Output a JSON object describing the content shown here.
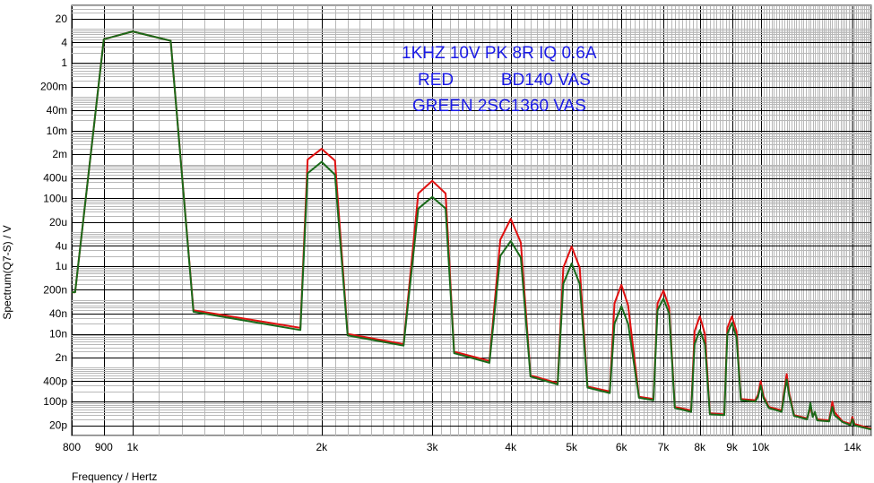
{
  "chart_data": {
    "type": "line",
    "title": "",
    "xlabel": "Frequency / Hertz",
    "ylabel": "Spectrum(Q7-S) / V",
    "x_scale": "log",
    "y_scale": "log",
    "xlim": [
      800,
      15000
    ],
    "ylim": [
      1e-11,
      50
    ],
    "grid": true,
    "x_ticks": [
      {
        "value": 800,
        "label": "800"
      },
      {
        "value": 900,
        "label": "900"
      },
      {
        "value": 1000,
        "label": "1k"
      },
      {
        "value": 2000,
        "label": "2k"
      },
      {
        "value": 3000,
        "label": "3k"
      },
      {
        "value": 4000,
        "label": "4k"
      },
      {
        "value": 5000,
        "label": "5k"
      },
      {
        "value": 6000,
        "label": "6k"
      },
      {
        "value": 7000,
        "label": "7k"
      },
      {
        "value": 8000,
        "label": "8k"
      },
      {
        "value": 9000,
        "label": "9k"
      },
      {
        "value": 10000,
        "label": "10k"
      },
      {
        "value": 14000,
        "label": "14k"
      }
    ],
    "y_ticks": [
      {
        "value": 20,
        "label": "20"
      },
      {
        "value": 4,
        "label": "4"
      },
      {
        "value": 1,
        "label": "1"
      },
      {
        "value": 0.2,
        "label": "200m"
      },
      {
        "value": 0.04,
        "label": "40m"
      },
      {
        "value": 0.01,
        "label": "10m"
      },
      {
        "value": 0.002,
        "label": "2m"
      },
      {
        "value": 0.0004,
        "label": "400u"
      },
      {
        "value": 0.0001,
        "label": "100u"
      },
      {
        "value": 2e-05,
        "label": "20u"
      },
      {
        "value": 4e-06,
        "label": "4u"
      },
      {
        "value": 1e-06,
        "label": "1u"
      },
      {
        "value": 2e-07,
        "label": "200n"
      },
      {
        "value": 4e-08,
        "label": "40n"
      },
      {
        "value": 1e-08,
        "label": "10n"
      },
      {
        "value": 2e-09,
        "label": "2n"
      },
      {
        "value": 4e-10,
        "label": "400p"
      },
      {
        "value": 1e-10,
        "label": "100p"
      },
      {
        "value": 2e-11,
        "label": "20p"
      }
    ],
    "annotations": [
      "1KHZ 10V PK 8R IQ 0.6A",
      "RED          BD140 VAS",
      "GREEN 2SC1360 VAS"
    ],
    "series": [
      {
        "color": "#e01010",
        "x": [
          800,
          810,
          900,
          1000,
          1150,
          1250,
          1850,
          1900,
          2000,
          2100,
          2200,
          2700,
          2850,
          3000,
          3150,
          3250,
          3700,
          3850,
          4000,
          4150,
          4300,
          4750,
          4850,
          5000,
          5150,
          5300,
          5750,
          5850,
          6000,
          6150,
          6400,
          6750,
          6850,
          7000,
          7150,
          7300,
          7750,
          7850,
          8000,
          8150,
          8300,
          8750,
          8850,
          9000,
          9150,
          9300,
          9800,
          9900,
          10000,
          10100,
          10300,
          10800,
          10900,
          11000,
          11100,
          11300,
          11850,
          11950,
          12000,
          12100,
          12200,
          12300,
          12850,
          12950,
          13000,
          13100,
          13500,
          13900,
          14000,
          14100,
          14800,
          15000
        ],
        "y": [
          1.7e-07,
          1.7e-07,
          5,
          8.5,
          4.5,
          5e-08,
          1.5e-08,
          0.0014,
          0.0029,
          0.0013,
          1e-08,
          5e-09,
          0.00014,
          0.00033,
          0.00014,
          3e-09,
          1.6e-09,
          6e-06,
          2.5e-05,
          5e-06,
          6e-10,
          3.5e-10,
          9e-07,
          3.8e-06,
          9e-07,
          2.8e-10,
          2e-10,
          8e-08,
          2.8e-07,
          7e-08,
          1.4e-10,
          1.2e-10,
          8e-08,
          1.9e-07,
          6e-08,
          7e-11,
          5.5e-11,
          1.2e-08,
          3.3e-08,
          1e-08,
          4.5e-11,
          4.2e-11,
          1.5e-08,
          3.3e-08,
          1.2e-08,
          1.2e-10,
          1.1e-10,
          1.6e-10,
          4e-10,
          1.5e-10,
          7e-11,
          5.5e-11,
          2e-10,
          6.5e-10,
          1.8e-10,
          4e-11,
          3.2e-11,
          5e-11,
          7e-11,
          4e-11,
          4.5e-11,
          3e-11,
          2.8e-11,
          6e-11,
          1e-10,
          5e-11,
          2.6e-11,
          2.2e-11,
          3.5e-11,
          2.2e-11,
          1.7e-11,
          1.6e-11
        ]
      },
      {
        "color": "#1a6a1a",
        "x": [
          800,
          810,
          900,
          1000,
          1150,
          1250,
          1850,
          1900,
          2000,
          2100,
          2200,
          2700,
          2850,
          3000,
          3150,
          3250,
          3700,
          3850,
          4000,
          4150,
          4300,
          4750,
          4850,
          5000,
          5150,
          5300,
          5750,
          5850,
          6000,
          6150,
          6400,
          6750,
          6850,
          7000,
          7150,
          7300,
          7750,
          7850,
          8000,
          8150,
          8300,
          8750,
          8850,
          9000,
          9150,
          9300,
          9800,
          9900,
          10000,
          10100,
          10300,
          10800,
          10900,
          11000,
          11100,
          11300,
          11850,
          11950,
          12000,
          12100,
          12200,
          12300,
          12850,
          12950,
          13000,
          13100,
          13500,
          13900,
          14000,
          14100,
          14800,
          15000
        ],
        "y": [
          1.7e-07,
          1.7e-07,
          5,
          8.5,
          4.5,
          4.5e-08,
          1.3e-08,
          0.00055,
          0.0012,
          0.0005,
          9e-09,
          4.5e-09,
          5e-05,
          0.00011,
          5e-05,
          2.7e-09,
          1.4e-09,
          2e-06,
          5.5e-06,
          1.8e-06,
          5.5e-10,
          3.2e-10,
          3e-07,
          1.2e-06,
          3e-07,
          2.6e-10,
          1.8e-10,
          2e-08,
          6.5e-08,
          2e-08,
          1.3e-10,
          1.1e-10,
          5e-08,
          1.1e-07,
          4e-08,
          6.5e-11,
          5e-11,
          5e-09,
          1.3e-08,
          5e-09,
          4.2e-11,
          4e-11,
          1e-08,
          2.1e-08,
          8e-09,
          1.1e-10,
          1e-10,
          1.4e-10,
          3e-10,
          1.3e-10,
          6.5e-11,
          5e-11,
          1.6e-10,
          4.5e-10,
          1.5e-10,
          3.8e-11,
          3e-11,
          6e-11,
          9e-11,
          3.5e-11,
          5e-11,
          2.8e-11,
          2.6e-11,
          5e-11,
          7e-11,
          4e-11,
          2.5e-11,
          2e-11,
          3e-11,
          2e-11,
          1.6e-11,
          1.5e-11
        ]
      }
    ]
  }
}
